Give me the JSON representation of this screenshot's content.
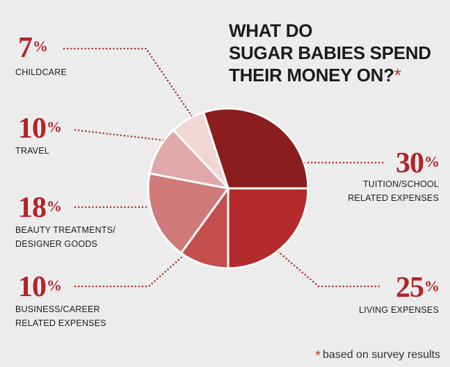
{
  "chart_data": {
    "type": "pie",
    "title_lines": [
      "WHAT DO",
      "SUGAR BABIES SPEND",
      "THEIR MONEY ON?"
    ],
    "title_marker": "*",
    "slices": [
      {
        "label_lines": [
          "TUITION/SCHOOL",
          "RELATED EXPENSES"
        ],
        "value": 30,
        "value_text": "30",
        "color": "#8a1e1e"
      },
      {
        "label_lines": [
          "LIVING EXPENSES"
        ],
        "value": 25,
        "value_text": "25",
        "color": "#b52a2a"
      },
      {
        "label_lines": [
          "BUSINESS/CAREER",
          "RELATED EXPENSES"
        ],
        "value": 10,
        "value_text": "10",
        "color": "#c44d4d"
      },
      {
        "label_lines": [
          "BEAUTY TREATMENTS/",
          "DESIGNER GOODS"
        ],
        "value": 18,
        "value_text": "18",
        "color": "#d07a7a"
      },
      {
        "label_lines": [
          "TRAVEL"
        ],
        "value": 10,
        "value_text": "10",
        "color": "#e0a8a8"
      },
      {
        "label_lines": [
          "CHILDCARE"
        ],
        "value": 7,
        "value_text": "7",
        "color": "#f1d6d6"
      }
    ],
    "percent_sign": "%",
    "leader_color": "#b02427",
    "footnote_marker": "*",
    "footnote": "based on survey results"
  }
}
